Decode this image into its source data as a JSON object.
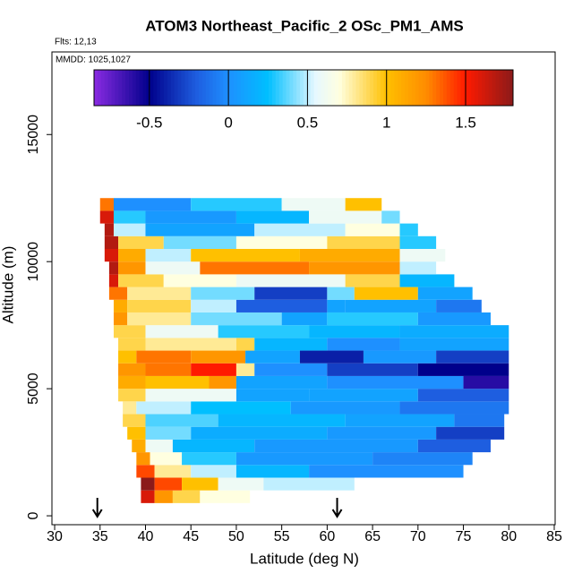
{
  "chart_data": {
    "type": "heatmap",
    "title": "ATOM3 Northeast_Pacific_2 OSc_PM1_AMS",
    "annotations": [
      "Flts: 12,13",
      "MMDD: 1025,1027"
    ],
    "x_label": "Latitude (deg N)",
    "y_label": "Altitude (m)",
    "xlim": [
      29.7,
      85.1
    ],
    "ylim": [
      -350,
      18250
    ],
    "xticks": [
      30,
      35,
      40,
      45,
      50,
      55,
      60,
      65,
      70,
      75,
      80,
      85
    ],
    "yticks": [
      0,
      5000,
      10000,
      15000
    ],
    "colorbar": {
      "lim": [
        -0.85,
        1.8
      ],
      "ticks": [
        -0.5,
        0,
        0.5,
        1.0,
        1.5
      ],
      "stops": [
        [
          -0.85,
          "#8a2be2"
        ],
        [
          -0.5,
          "#00008b"
        ],
        [
          -0.2,
          "#1e5ee0"
        ],
        [
          0.0,
          "#1e90ff"
        ],
        [
          0.25,
          "#00bfff"
        ],
        [
          0.55,
          "#e6f8ff"
        ],
        [
          0.7,
          "#ffffe0"
        ],
        [
          1.0,
          "#ffc000"
        ],
        [
          1.25,
          "#ff8c00"
        ],
        [
          1.5,
          "#ff1a00"
        ],
        [
          1.8,
          "#8b1a1a"
        ]
      ]
    },
    "arrows": [
      34.7,
      61.1
    ],
    "rows": [
      {
        "alt": [
          500,
          1000
        ],
        "segments": [
          [
            39.5,
            41,
            1.6
          ],
          [
            41,
            43,
            1.2
          ],
          [
            43,
            46,
            0.9
          ],
          [
            46,
            51.5,
            0.7
          ]
        ]
      },
      {
        "alt": [
          1000,
          1500
        ],
        "segments": [
          [
            39.5,
            41,
            1.8
          ],
          [
            41,
            44,
            1.4
          ],
          [
            44,
            48,
            1.0
          ],
          [
            48,
            53,
            0.6
          ],
          [
            53,
            63,
            0.5
          ]
        ]
      },
      {
        "alt": [
          1500,
          2000
        ],
        "segments": [
          [
            39,
            41,
            1.4
          ],
          [
            41,
            45,
            0.8
          ],
          [
            45,
            50,
            0.5
          ],
          [
            50,
            58,
            0.2
          ],
          [
            58,
            75,
            0.0
          ]
        ]
      },
      {
        "alt": [
          2000,
          2500
        ],
        "segments": [
          [
            39,
            40.5,
            1.2
          ],
          [
            40.5,
            44,
            0.7
          ],
          [
            44,
            50,
            0.3
          ],
          [
            50,
            65,
            0.05
          ],
          [
            65,
            76,
            -0.05
          ]
        ]
      },
      {
        "alt": [
          2500,
          3000
        ],
        "segments": [
          [
            38.5,
            40,
            1.1
          ],
          [
            40,
            43,
            0.6
          ],
          [
            43,
            52,
            0.2
          ],
          [
            52,
            70,
            0.05
          ],
          [
            70,
            78,
            -0.2
          ]
        ]
      },
      {
        "alt": [
          3000,
          3500
        ],
        "segments": [
          [
            38,
            40,
            1.0
          ],
          [
            40,
            45,
            0.4
          ],
          [
            45,
            60,
            0.15
          ],
          [
            60,
            72,
            0.05
          ],
          [
            72,
            79.5,
            -0.3
          ]
        ]
      },
      {
        "alt": [
          3500,
          4000
        ],
        "segments": [
          [
            37.5,
            40,
            0.9
          ],
          [
            40,
            48,
            0.35
          ],
          [
            48,
            62,
            0.2
          ],
          [
            62,
            74,
            0.1
          ],
          [
            74,
            79.5,
            -0.1
          ]
        ]
      },
      {
        "alt": [
          4000,
          4500
        ],
        "segments": [
          [
            37.5,
            39,
            0.8
          ],
          [
            39,
            45,
            0.5
          ],
          [
            45,
            56,
            0.25
          ],
          [
            56,
            68,
            0.05
          ],
          [
            68,
            80,
            -0.1
          ]
        ]
      },
      {
        "alt": [
          4500,
          5000
        ],
        "segments": [
          [
            37,
            40,
            0.9
          ],
          [
            40,
            50,
            0.6
          ],
          [
            50,
            58,
            0.1
          ],
          [
            58,
            70,
            0.1
          ],
          [
            70,
            80,
            -0.2
          ]
        ]
      },
      {
        "alt": [
          5000,
          5500
        ],
        "segments": [
          [
            37,
            40,
            1.1
          ],
          [
            40,
            47,
            1.0
          ],
          [
            47,
            50,
            1.2
          ],
          [
            50,
            60,
            0.1
          ],
          [
            60,
            75,
            0.0
          ],
          [
            75,
            80,
            -0.6
          ]
        ]
      },
      {
        "alt": [
          5500,
          6000
        ],
        "segments": [
          [
            37,
            40,
            1.2
          ],
          [
            40,
            45,
            1.3
          ],
          [
            45,
            50,
            1.5
          ],
          [
            50,
            52,
            0.8
          ],
          [
            52,
            60,
            0.0
          ],
          [
            60,
            70,
            -0.3
          ],
          [
            70,
            80,
            -0.5
          ]
        ]
      },
      {
        "alt": [
          6000,
          6500
        ],
        "segments": [
          [
            37,
            39,
            1.0
          ],
          [
            39,
            45,
            1.3
          ],
          [
            45,
            51,
            1.2
          ],
          [
            51,
            57,
            0.1
          ],
          [
            57,
            64,
            -0.4
          ],
          [
            64,
            72,
            0.05
          ],
          [
            72,
            80,
            -0.3
          ]
        ]
      },
      {
        "alt": [
          6500,
          7000
        ],
        "segments": [
          [
            37,
            40,
            0.9
          ],
          [
            40,
            50,
            0.8
          ],
          [
            50,
            52,
            0.9
          ],
          [
            52,
            60,
            0.2
          ],
          [
            60,
            68,
            0.0
          ],
          [
            68,
            80,
            0.1
          ]
        ]
      },
      {
        "alt": [
          7000,
          7500
        ],
        "segments": [
          [
            36.5,
            40,
            0.9
          ],
          [
            40,
            48,
            0.6
          ],
          [
            48,
            58,
            0.3
          ],
          [
            58,
            68,
            0.2
          ],
          [
            68,
            80,
            0.15
          ]
        ]
      },
      {
        "alt": [
          7500,
          8000
        ],
        "segments": [
          [
            36.5,
            38,
            1.2
          ],
          [
            38,
            45,
            0.8
          ],
          [
            45,
            55,
            0.4
          ],
          [
            55,
            60,
            0.1
          ],
          [
            60,
            70,
            0.3
          ],
          [
            70,
            78,
            0.05
          ]
        ]
      },
      {
        "alt": [
          8000,
          8500
        ],
        "segments": [
          [
            36.5,
            38,
            1.1
          ],
          [
            38,
            45,
            0.9
          ],
          [
            45,
            50,
            0.5
          ],
          [
            50,
            60,
            -0.2
          ],
          [
            60,
            62,
            0.1
          ],
          [
            62,
            72,
            0.1
          ],
          [
            72,
            77,
            -0.1
          ]
        ]
      },
      {
        "alt": [
          8500,
          9000
        ],
        "segments": [
          [
            36,
            38,
            1.3
          ],
          [
            38,
            45,
            0.8
          ],
          [
            45,
            52,
            0.4
          ],
          [
            52,
            60,
            -0.3
          ],
          [
            60,
            63,
            0.4
          ],
          [
            63,
            70,
            1.0
          ],
          [
            70,
            76,
            0.1
          ]
        ]
      },
      {
        "alt": [
          9000,
          9500
        ],
        "segments": [
          [
            36,
            37,
            1.6
          ],
          [
            37,
            42,
            0.9
          ],
          [
            42,
            50,
            0.7
          ],
          [
            50,
            62,
            0.6
          ],
          [
            62,
            68,
            0.9
          ],
          [
            68,
            74,
            0.2
          ]
        ]
      },
      {
        "alt": [
          9500,
          10000
        ],
        "segments": [
          [
            36,
            37,
            1.7
          ],
          [
            37,
            40,
            1.2
          ],
          [
            40,
            46,
            0.6
          ],
          [
            46,
            58,
            1.3
          ],
          [
            58,
            68,
            1.2
          ],
          [
            68,
            72,
            0.5
          ]
        ]
      },
      {
        "alt": [
          10000,
          10500
        ],
        "segments": [
          [
            35.5,
            37,
            1.6
          ],
          [
            37,
            40,
            1.1
          ],
          [
            40,
            45,
            0.5
          ],
          [
            45,
            57,
            1.0
          ],
          [
            57,
            68,
            1.1
          ],
          [
            68,
            73,
            0.6
          ]
        ]
      },
      {
        "alt": [
          10500,
          11000
        ],
        "segments": [
          [
            35.5,
            37,
            1.7
          ],
          [
            37,
            42,
            0.9
          ],
          [
            42,
            50,
            0.4
          ],
          [
            50,
            60,
            0.7
          ],
          [
            60,
            68,
            0.9
          ],
          [
            68,
            72,
            0.3
          ]
        ]
      },
      {
        "alt": [
          11000,
          11500
        ],
        "segments": [
          [
            35.5,
            36.5,
            1.7
          ],
          [
            36.5,
            40,
            0.5
          ],
          [
            40,
            52,
            0.1
          ],
          [
            52,
            62,
            0.5
          ],
          [
            62,
            68,
            0.7
          ],
          [
            68,
            70,
            0.3
          ]
        ]
      },
      {
        "alt": [
          11500,
          12000
        ],
        "segments": [
          [
            35,
            36.5,
            1.6
          ],
          [
            36.5,
            40,
            0.3
          ],
          [
            40,
            50,
            0.05
          ],
          [
            50,
            58,
            0.2
          ],
          [
            58,
            66,
            0.6
          ],
          [
            66,
            68,
            0.4
          ]
        ]
      },
      {
        "alt": [
          12000,
          12500
        ],
        "segments": [
          [
            35,
            36.5,
            1.3
          ],
          [
            36.5,
            45,
            0.0
          ],
          [
            45,
            55,
            0.3
          ],
          [
            55,
            62,
            0.6
          ],
          [
            62,
            66,
            1.0
          ]
        ]
      }
    ]
  }
}
